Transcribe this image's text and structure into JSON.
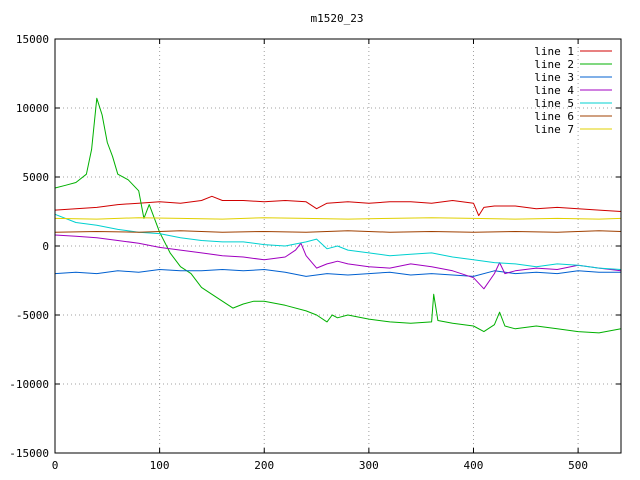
{
  "chart_data": {
    "type": "line",
    "title": "m1520_23",
    "xlabel": "",
    "ylabel": "",
    "xlim": [
      0,
      541
    ],
    "ylim": [
      -15000,
      15000
    ],
    "x_ticks": [
      0,
      100,
      200,
      300,
      400,
      500
    ],
    "y_ticks": [
      -15000,
      -10000,
      -5000,
      0,
      5000,
      10000,
      15000
    ],
    "grid": true,
    "legend_position": "top-right",
    "series": [
      {
        "name": "line 1",
        "color": "#d00000",
        "x": [
          0,
          20,
          40,
          60,
          80,
          100,
          120,
          140,
          150,
          160,
          180,
          200,
          220,
          240,
          250,
          260,
          280,
          300,
          320,
          340,
          360,
          380,
          400,
          405,
          410,
          420,
          440,
          460,
          480,
          500,
          520,
          541
        ],
        "y": [
          2600,
          2700,
          2800,
          3000,
          3100,
          3200,
          3100,
          3300,
          3600,
          3300,
          3300,
          3200,
          3300,
          3200,
          2700,
          3100,
          3200,
          3100,
          3200,
          3200,
          3100,
          3300,
          3100,
          2200,
          2800,
          2900,
          2900,
          2700,
          2800,
          2700,
          2600,
          2500
        ]
      },
      {
        "name": "line 2",
        "color": "#00b000",
        "x": [
          0,
          10,
          20,
          30,
          35,
          40,
          45,
          50,
          55,
          60,
          70,
          80,
          85,
          90,
          100,
          110,
          120,
          130,
          140,
          150,
          160,
          170,
          180,
          190,
          200,
          220,
          240,
          250,
          260,
          265,
          270,
          280,
          300,
          320,
          340,
          360,
          362,
          366,
          380,
          400,
          410,
          420,
          425,
          430,
          440,
          460,
          480,
          500,
          520,
          541
        ],
        "y": [
          4200,
          4400,
          4600,
          5200,
          7000,
          10700,
          9500,
          7500,
          6500,
          5200,
          4800,
          4000,
          2000,
          3000,
          1000,
          -500,
          -1500,
          -2000,
          -3000,
          -3500,
          -4000,
          -4500,
          -4200,
          -4000,
          -4000,
          -4300,
          -4700,
          -5000,
          -5500,
          -5000,
          -5200,
          -5000,
          -5300,
          -5500,
          -5600,
          -5500,
          -3500,
          -5400,
          -5600,
          -5800,
          -6200,
          -5700,
          -4800,
          -5800,
          -6000,
          -5800,
          -6000,
          -6200,
          -6300,
          -6000
        ]
      },
      {
        "name": "line 3",
        "color": "#0060d0",
        "x": [
          0,
          20,
          40,
          60,
          80,
          100,
          120,
          140,
          160,
          180,
          200,
          220,
          240,
          260,
          280,
          300,
          320,
          340,
          360,
          380,
          400,
          420,
          440,
          460,
          480,
          500,
          520,
          541
        ],
        "y": [
          -2000,
          -1900,
          -2000,
          -1800,
          -1900,
          -1700,
          -1800,
          -1800,
          -1700,
          -1800,
          -1700,
          -1900,
          -2200,
          -2000,
          -2100,
          -2000,
          -1900,
          -2100,
          -2000,
          -2100,
          -2200,
          -1800,
          -2000,
          -1900,
          -2000,
          -1800,
          -1900,
          -1900
        ]
      },
      {
        "name": "line 4",
        "color": "#a000c0",
        "x": [
          0,
          20,
          40,
          60,
          80,
          100,
          120,
          140,
          160,
          180,
          200,
          220,
          230,
          235,
          240,
          250,
          260,
          265,
          270,
          280,
          300,
          320,
          340,
          360,
          380,
          400,
          410,
          420,
          425,
          430,
          440,
          460,
          480,
          500,
          520,
          541
        ],
        "y": [
          800,
          700,
          600,
          400,
          200,
          -100,
          -300,
          -500,
          -700,
          -800,
          -1000,
          -800,
          -300,
          200,
          -700,
          -1600,
          -1300,
          -1200,
          -1100,
          -1300,
          -1500,
          -1600,
          -1300,
          -1500,
          -1800,
          -2300,
          -3100,
          -2000,
          -1200,
          -2000,
          -1800,
          -1600,
          -1700,
          -1400,
          -1600,
          -1800
        ]
      },
      {
        "name": "line 5",
        "color": "#00d0d0",
        "x": [
          0,
          20,
          40,
          60,
          80,
          100,
          120,
          140,
          160,
          180,
          200,
          220,
          240,
          250,
          260,
          270,
          280,
          300,
          320,
          340,
          360,
          380,
          400,
          420,
          440,
          460,
          480,
          500,
          520,
          541
        ],
        "y": [
          2300,
          1700,
          1500,
          1200,
          1000,
          900,
          600,
          400,
          300,
          300,
          100,
          0,
          300,
          500,
          -200,
          0,
          -300,
          -500,
          -700,
          -600,
          -500,
          -800,
          -1000,
          -1200,
          -1300,
          -1500,
          -1300,
          -1400,
          -1600,
          -1700
        ]
      },
      {
        "name": "line 6",
        "color": "#a04000",
        "x": [
          0,
          40,
          80,
          120,
          160,
          200,
          240,
          280,
          320,
          360,
          400,
          440,
          480,
          520,
          541
        ],
        "y": [
          1000,
          1050,
          1000,
          1100,
          1000,
          1050,
          1000,
          1100,
          1000,
          1050,
          1000,
          1050,
          1000,
          1100,
          1050
        ]
      },
      {
        "name": "line 7",
        "color": "#e0d000",
        "x": [
          0,
          40,
          80,
          120,
          160,
          200,
          240,
          280,
          320,
          360,
          400,
          440,
          480,
          520,
          541
        ],
        "y": [
          2000,
          1950,
          2050,
          2000,
          1950,
          2050,
          2000,
          1950,
          2000,
          2050,
          2000,
          1950,
          2000,
          1950,
          2000
        ]
      }
    ]
  }
}
